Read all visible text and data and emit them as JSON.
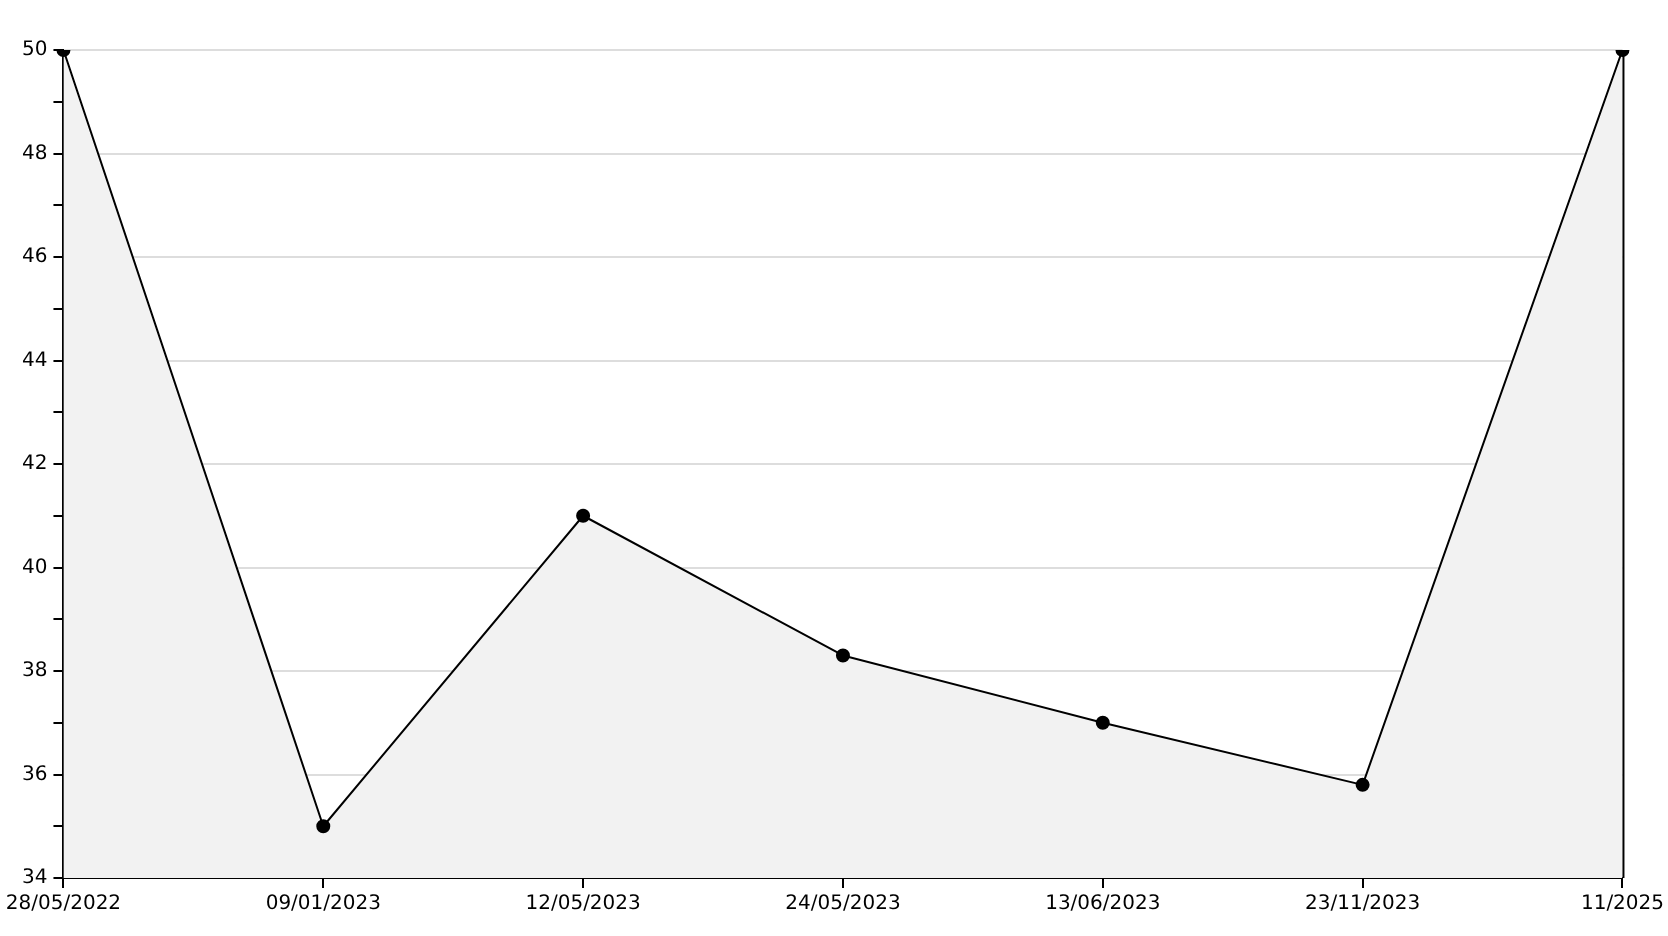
{
  "chart_data": {
    "type": "area",
    "categories": [
      "28/05/2022",
      "09/01/2023",
      "12/05/2023",
      "24/05/2023",
      "13/06/2023",
      "23/11/2023",
      "11/2025"
    ],
    "series": [
      {
        "color": "#000000",
        "values": [
          50,
          35,
          41.0,
          38.3,
          37.0,
          35.8,
          50
        ]
      }
    ],
    "ylim": [
      34,
      50
    ],
    "yticks": [
      34,
      {
        "value": 35,
        "label": null
      },
      36,
      {
        "value": 37,
        "label": null
      },
      38,
      {
        "value": 39,
        "label": null
      },
      40,
      {
        "value": 41,
        "label": null
      },
      42,
      {
        "value": 43,
        "label": null
      },
      44,
      {
        "value": 45,
        "label": null
      },
      46,
      {
        "value": 47,
        "label": null
      },
      48,
      {
        "value": 49,
        "label": null
      },
      50
    ],
    "grid": "y",
    "marker": "circle",
    "legend": false
  }
}
